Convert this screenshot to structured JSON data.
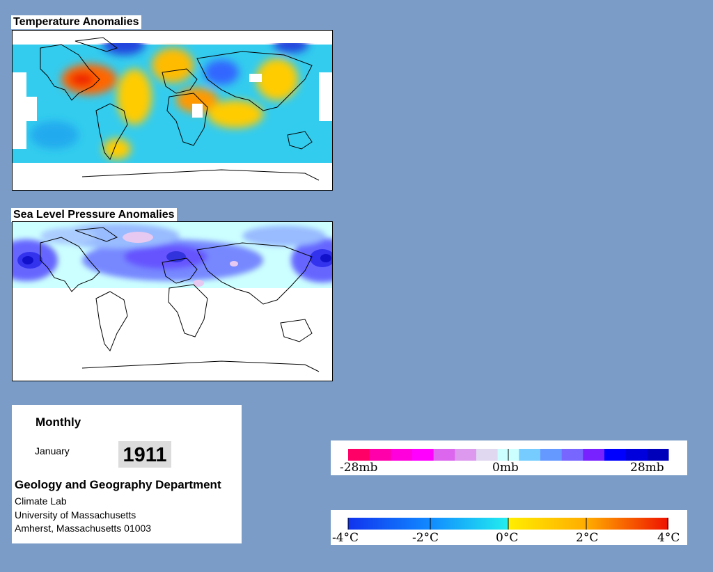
{
  "temperature_map": {
    "title": "Temperature Anomalies"
  },
  "pressure_map": {
    "title": "Sea Level Pressure Anomalies"
  },
  "info": {
    "period_type": "Monthly",
    "month": "January",
    "year": "1911",
    "department": "Geology and Geography Department",
    "lab": "Climate Lab",
    "university": "University of Massachusetts",
    "location": "Amherst, Massachusetts 01003"
  },
  "pressure_legend": {
    "colors": [
      "#ff0066",
      "#ff00aa",
      "#ff00dd",
      "#ff00ff",
      "#dd66ee",
      "#dd99ee",
      "#e0d8f0",
      "#ccffff",
      "#77ccff",
      "#6699ff",
      "#7766ff",
      "#7722ff",
      "#0000ff",
      "#0000dd",
      "#0000bb"
    ],
    "labels": [
      "-28mb",
      "0mb",
      "28mb"
    ]
  },
  "temperature_legend": {
    "labels": [
      "-4°C",
      "-2°C",
      "0°C",
      "2°C",
      "4°C"
    ]
  }
}
